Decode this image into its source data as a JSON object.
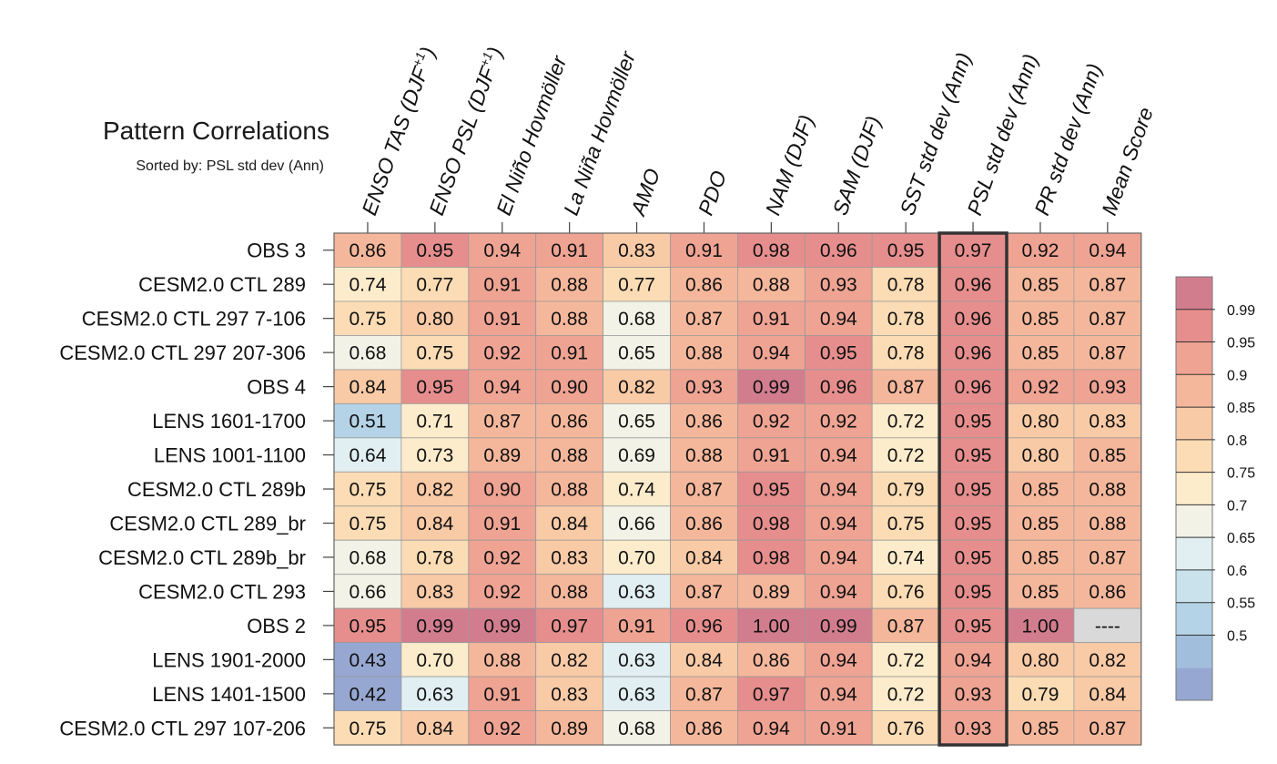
{
  "chart_data": {
    "type": "heatmap",
    "title": "Pattern Correlations",
    "subtitle": "Sorted by: PSL std dev (Ann)",
    "columns": [
      {
        "pre": "ENSO TAS (DJF",
        "sup": "+1",
        "post": ")"
      },
      {
        "pre": "ENSO PSL (DJF",
        "sup": "+1",
        "post": ")"
      },
      {
        "pre": "El Niño Hovmöller",
        "sup": "",
        "post": ""
      },
      {
        "pre": "La Niña Hovmöller",
        "sup": "",
        "post": ""
      },
      {
        "pre": "AMO",
        "sup": "",
        "post": ""
      },
      {
        "pre": "PDO",
        "sup": "",
        "post": ""
      },
      {
        "pre": "NAM (DJF)",
        "sup": "",
        "post": ""
      },
      {
        "pre": "SAM (DJF)",
        "sup": "",
        "post": ""
      },
      {
        "pre": "SST std dev (Ann)",
        "sup": "",
        "post": ""
      },
      {
        "pre": "PSL std dev (Ann)",
        "sup": "",
        "post": ""
      },
      {
        "pre": "PR std dev (Ann)",
        "sup": "",
        "post": ""
      },
      {
        "pre": "Mean Score",
        "sup": "",
        "post": ""
      }
    ],
    "highlight_column": 9,
    "rows": [
      {
        "label": "OBS 3",
        "values": [
          "0.86",
          "0.95",
          "0.94",
          "0.91",
          "0.83",
          "0.91",
          "0.98",
          "0.96",
          "0.95",
          "0.97",
          "0.92",
          "0.94"
        ]
      },
      {
        "label": "CESM2.0 CTL 289",
        "values": [
          "0.74",
          "0.77",
          "0.91",
          "0.88",
          "0.77",
          "0.86",
          "0.88",
          "0.93",
          "0.78",
          "0.96",
          "0.85",
          "0.87"
        ]
      },
      {
        "label": "CESM2.0 CTL 297 7-106",
        "values": [
          "0.75",
          "0.80",
          "0.91",
          "0.88",
          "0.68",
          "0.87",
          "0.91",
          "0.94",
          "0.78",
          "0.96",
          "0.85",
          "0.87"
        ]
      },
      {
        "label": "CESM2.0 CTL 297 207-306",
        "values": [
          "0.68",
          "0.75",
          "0.92",
          "0.91",
          "0.65",
          "0.88",
          "0.94",
          "0.95",
          "0.78",
          "0.96",
          "0.85",
          "0.87"
        ]
      },
      {
        "label": "OBS 4",
        "values": [
          "0.84",
          "0.95",
          "0.94",
          "0.90",
          "0.82",
          "0.93",
          "0.99",
          "0.96",
          "0.87",
          "0.96",
          "0.92",
          "0.93"
        ]
      },
      {
        "label": "LENS 1601-1700",
        "values": [
          "0.51",
          "0.71",
          "0.87",
          "0.86",
          "0.65",
          "0.86",
          "0.92",
          "0.92",
          "0.72",
          "0.95",
          "0.80",
          "0.83"
        ]
      },
      {
        "label": "LENS 1001-1100",
        "values": [
          "0.64",
          "0.73",
          "0.89",
          "0.88",
          "0.69",
          "0.88",
          "0.91",
          "0.94",
          "0.72",
          "0.95",
          "0.80",
          "0.85"
        ]
      },
      {
        "label": "CESM2.0 CTL 289b",
        "values": [
          "0.75",
          "0.82",
          "0.90",
          "0.88",
          "0.74",
          "0.87",
          "0.95",
          "0.94",
          "0.79",
          "0.95",
          "0.85",
          "0.88"
        ]
      },
      {
        "label": "CESM2.0 CTL 289_br",
        "values": [
          "0.75",
          "0.84",
          "0.91",
          "0.84",
          "0.66",
          "0.86",
          "0.98",
          "0.94",
          "0.75",
          "0.95",
          "0.85",
          "0.88"
        ]
      },
      {
        "label": "CESM2.0 CTL 289b_br",
        "values": [
          "0.68",
          "0.78",
          "0.92",
          "0.83",
          "0.70",
          "0.84",
          "0.98",
          "0.94",
          "0.74",
          "0.95",
          "0.85",
          "0.87"
        ]
      },
      {
        "label": "CESM2.0 CTL 293",
        "values": [
          "0.66",
          "0.83",
          "0.92",
          "0.88",
          "0.63",
          "0.87",
          "0.89",
          "0.94",
          "0.76",
          "0.95",
          "0.85",
          "0.86"
        ]
      },
      {
        "label": "OBS 2",
        "values": [
          "0.95",
          "0.99",
          "0.99",
          "0.97",
          "0.91",
          "0.96",
          "1.00",
          "0.99",
          "0.87",
          "0.95",
          "1.00",
          "----"
        ]
      },
      {
        "label": "LENS 1901-2000",
        "values": [
          "0.43",
          "0.70",
          "0.88",
          "0.82",
          "0.63",
          "0.84",
          "0.86",
          "0.94",
          "0.72",
          "0.94",
          "0.80",
          "0.82"
        ]
      },
      {
        "label": "LENS 1401-1500",
        "values": [
          "0.42",
          "0.63",
          "0.91",
          "0.83",
          "0.63",
          "0.87",
          "0.97",
          "0.94",
          "0.72",
          "0.93",
          "0.79",
          "0.84"
        ]
      },
      {
        "label": "CESM2.0 CTL 297 107-206",
        "values": [
          "0.75",
          "0.84",
          "0.92",
          "0.89",
          "0.68",
          "0.86",
          "0.94",
          "0.91",
          "0.76",
          "0.93",
          "0.85",
          "0.87"
        ]
      }
    ],
    "colorbar": {
      "levels": [
        "0.99",
        "0.95",
        "0.9",
        "0.85",
        "0.8",
        "0.75",
        "0.7",
        "0.65",
        "0.6",
        "0.55",
        "0.5"
      ],
      "colors": [
        "#d27d8e",
        "#e68e8d",
        "#efa393",
        "#f5b79b",
        "#f9caa6",
        "#fbdcb4",
        "#fdeccb",
        "#f2f2e6",
        "#e1eff2",
        "#c9e2ec",
        "#b5d3e6",
        "#a1bfdc",
        "#96a8d2"
      ],
      "missing_color": "#d9d9d9"
    }
  }
}
